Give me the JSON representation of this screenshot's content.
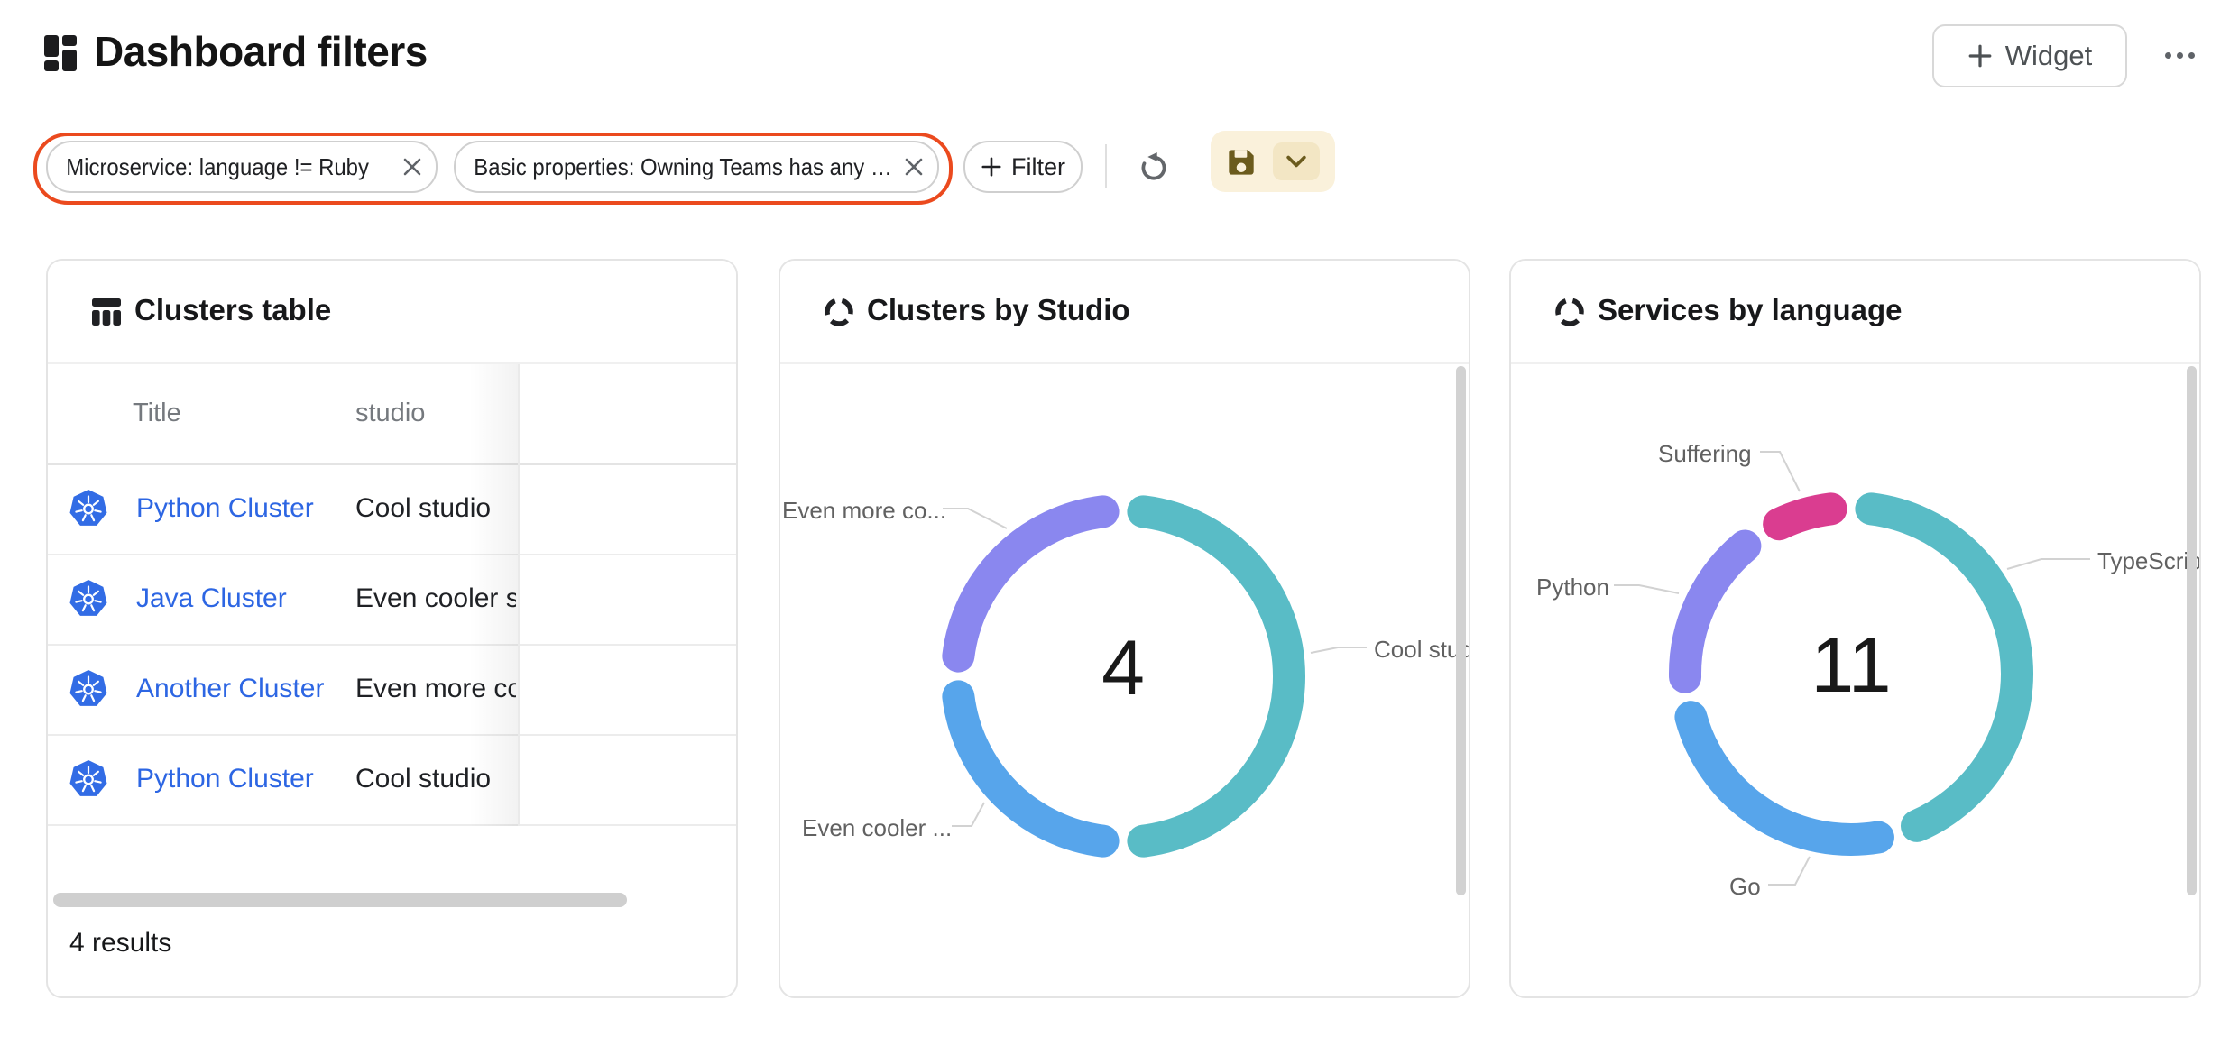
{
  "header": {
    "title": "Dashboard filters",
    "widget_button_label": "Widget",
    "icons": {
      "app": "dashboard-grid",
      "add": "+",
      "more": "⋯"
    }
  },
  "filters": {
    "chips": [
      {
        "label": "Microservice: language != Ruby",
        "close_icon": "×"
      },
      {
        "label": "Basic properties: Owning Teams has any …",
        "close_icon": "×"
      }
    ],
    "add_button_label": "Filter",
    "icons": {
      "undo": "↺",
      "save": "floppy-disk",
      "save_expand": "chevron-down"
    },
    "colors": {
      "highlight_outline": "#EB4A1E",
      "save_background": "#FAF1DB",
      "save_icon": "#6B5B1D"
    }
  },
  "cards": {
    "clusters_table": {
      "title": "Clusters table",
      "columns": [
        "Title",
        "studio"
      ],
      "rows": [
        [
          "Python Cluster",
          "Cool studio"
        ],
        [
          "Java Cluster",
          "Even cooler st"
        ],
        [
          "Another Cluster",
          "Even more co"
        ],
        [
          "Python Cluster",
          "Cool studio"
        ]
      ],
      "row_icon": "kubernetes-helm",
      "footer": "4 results",
      "colors": {
        "link": "#2D66E3",
        "kubernetes_blue": "#326CE5"
      }
    }
  },
  "chart_data": [
    {
      "type": "donut",
      "title": "Clusters by Studio",
      "center_label": "4",
      "total": 4,
      "legend_position": "callout-labels",
      "segments": [
        {
          "label": "Cool studio",
          "value": 2,
          "color": "#59BCC6"
        },
        {
          "label": "Even cooler ...",
          "value": 1,
          "color": "#57A5EB"
        },
        {
          "label": "Even more co...",
          "value": 1,
          "color": "#8A87EF"
        }
      ]
    },
    {
      "type": "donut",
      "title": "Services by language",
      "center_label": "11",
      "total": 11,
      "legend_position": "callout-labels",
      "segments": [
        {
          "label": "TypeScript",
          "value": 5,
          "color": "#59BCC6"
        },
        {
          "label": "Go",
          "value": 3,
          "color": "#57A5EB"
        },
        {
          "label": "Python",
          "value": 2,
          "color": "#8A87EF"
        },
        {
          "label": "Suffering",
          "value": 1,
          "color": "#DA3D90"
        }
      ]
    }
  ]
}
